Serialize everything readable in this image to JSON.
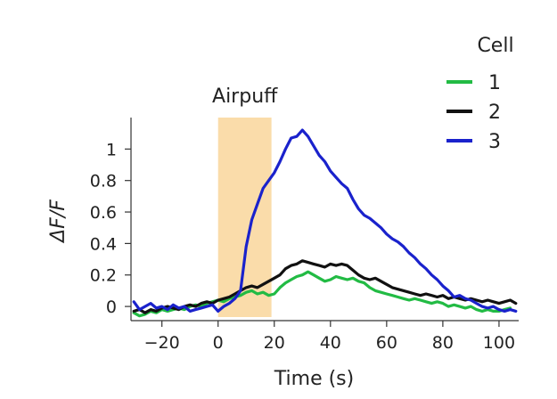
{
  "chart_data": {
    "type": "line",
    "title": "",
    "xlabel": "Time (s)",
    "ylabel": "ΔF/F",
    "xlim": [
      -31,
      107
    ],
    "ylim": [
      -0.09,
      1.2
    ],
    "xticks": [
      -20,
      0,
      20,
      40,
      60,
      80,
      100
    ],
    "xtick_labels": [
      "−20",
      "0",
      "20",
      "40",
      "60",
      "80",
      "100"
    ],
    "yticks": [
      0,
      0.2,
      0.4,
      0.6,
      0.8,
      1
    ],
    "ytick_labels": [
      "0",
      "0.2",
      "0.4",
      "0.6",
      "0.8",
      "1"
    ],
    "grid": false,
    "annotation": {
      "label": "Airpuff",
      "x_start": 0,
      "x_end": 19,
      "color": "#fadcaa"
    },
    "legend": {
      "title": "Cell",
      "position": "top-right"
    },
    "series": [
      {
        "name": "1",
        "color": "#22bb44",
        "x": [
          -30,
          -28,
          -26,
          -24,
          -22,
          -20,
          -18,
          -16,
          -14,
          -12,
          -10,
          -8,
          -6,
          -4,
          -2,
          0,
          2,
          4,
          6,
          8,
          10,
          12,
          14,
          16,
          18,
          20,
          22,
          24,
          26,
          28,
          30,
          32,
          34,
          36,
          38,
          40,
          42,
          44,
          46,
          48,
          50,
          52,
          54,
          56,
          58,
          60,
          62,
          64,
          66,
          68,
          70,
          72,
          74,
          76,
          78,
          80,
          82,
          84,
          86,
          88,
          90,
          92,
          94,
          96,
          98,
          100,
          102,
          104
        ],
        "y": [
          -0.04,
          -0.06,
          -0.05,
          -0.03,
          -0.04,
          -0.02,
          -0.03,
          -0.02,
          -0.01,
          -0.02,
          0.0,
          0.01,
          0.0,
          0.02,
          0.03,
          0.04,
          0.03,
          0.05,
          0.06,
          0.07,
          0.09,
          0.1,
          0.08,
          0.09,
          0.07,
          0.08,
          0.12,
          0.15,
          0.17,
          0.19,
          0.2,
          0.22,
          0.2,
          0.18,
          0.16,
          0.17,
          0.19,
          0.18,
          0.17,
          0.18,
          0.16,
          0.15,
          0.12,
          0.1,
          0.09,
          0.08,
          0.07,
          0.06,
          0.05,
          0.04,
          0.05,
          0.04,
          0.03,
          0.02,
          0.03,
          0.02,
          0.0,
          0.01,
          0.0,
          -0.01,
          0.0,
          -0.02,
          -0.03,
          -0.02,
          -0.03,
          -0.03,
          -0.02,
          -0.01
        ]
      },
      {
        "name": "2",
        "color": "#111111",
        "x": [
          -30,
          -28,
          -26,
          -24,
          -22,
          -20,
          -18,
          -16,
          -14,
          -12,
          -10,
          -8,
          -6,
          -4,
          -2,
          0,
          2,
          4,
          6,
          8,
          10,
          12,
          14,
          16,
          18,
          20,
          22,
          24,
          26,
          28,
          30,
          32,
          34,
          36,
          38,
          40,
          42,
          44,
          46,
          48,
          50,
          52,
          54,
          56,
          58,
          60,
          62,
          64,
          66,
          68,
          70,
          72,
          74,
          76,
          78,
          80,
          82,
          84,
          86,
          88,
          90,
          92,
          94,
          96,
          98,
          100,
          102,
          104,
          106
        ],
        "y": [
          -0.03,
          -0.02,
          -0.04,
          -0.02,
          -0.03,
          -0.01,
          0.0,
          -0.01,
          -0.02,
          0.0,
          0.01,
          0.0,
          0.02,
          0.03,
          0.02,
          0.04,
          0.05,
          0.06,
          0.08,
          0.1,
          0.12,
          0.13,
          0.12,
          0.14,
          0.16,
          0.18,
          0.2,
          0.24,
          0.26,
          0.27,
          0.29,
          0.28,
          0.27,
          0.26,
          0.25,
          0.27,
          0.26,
          0.27,
          0.26,
          0.23,
          0.2,
          0.18,
          0.17,
          0.18,
          0.16,
          0.14,
          0.12,
          0.11,
          0.1,
          0.09,
          0.08,
          0.07,
          0.08,
          0.07,
          0.06,
          0.07,
          0.05,
          0.06,
          0.05,
          0.04,
          0.05,
          0.04,
          0.03,
          0.04,
          0.03,
          0.02,
          0.03,
          0.04,
          0.02
        ]
      },
      {
        "name": "3",
        "color": "#1a22cc",
        "x": [
          -30,
          -28,
          -26,
          -24,
          -22,
          -20,
          -18,
          -16,
          -14,
          -12,
          -10,
          -8,
          -6,
          -4,
          -2,
          0,
          2,
          4,
          6,
          8,
          10,
          12,
          14,
          16,
          18,
          20,
          22,
          24,
          26,
          28,
          30,
          32,
          34,
          36,
          38,
          40,
          42,
          44,
          46,
          48,
          50,
          52,
          54,
          56,
          58,
          60,
          62,
          64,
          66,
          68,
          70,
          72,
          74,
          76,
          78,
          80,
          82,
          84,
          86,
          88,
          90,
          92,
          94,
          96,
          98,
          100,
          102,
          104,
          106
        ],
        "y": [
          0.03,
          -0.02,
          0.0,
          0.02,
          -0.01,
          0.0,
          -0.02,
          0.01,
          -0.01,
          0.0,
          -0.03,
          -0.02,
          -0.01,
          0.0,
          0.01,
          -0.03,
          0.0,
          0.02,
          0.05,
          0.1,
          0.38,
          0.55,
          0.65,
          0.75,
          0.8,
          0.85,
          0.92,
          1.0,
          1.07,
          1.08,
          1.12,
          1.08,
          1.02,
          0.96,
          0.92,
          0.86,
          0.82,
          0.78,
          0.75,
          0.68,
          0.62,
          0.58,
          0.56,
          0.53,
          0.5,
          0.46,
          0.43,
          0.41,
          0.38,
          0.34,
          0.31,
          0.27,
          0.24,
          0.2,
          0.17,
          0.13,
          0.1,
          0.06,
          0.07,
          0.05,
          0.04,
          0.02,
          0.0,
          -0.01,
          0.0,
          -0.02,
          -0.03,
          -0.02,
          -0.03
        ]
      }
    ]
  }
}
